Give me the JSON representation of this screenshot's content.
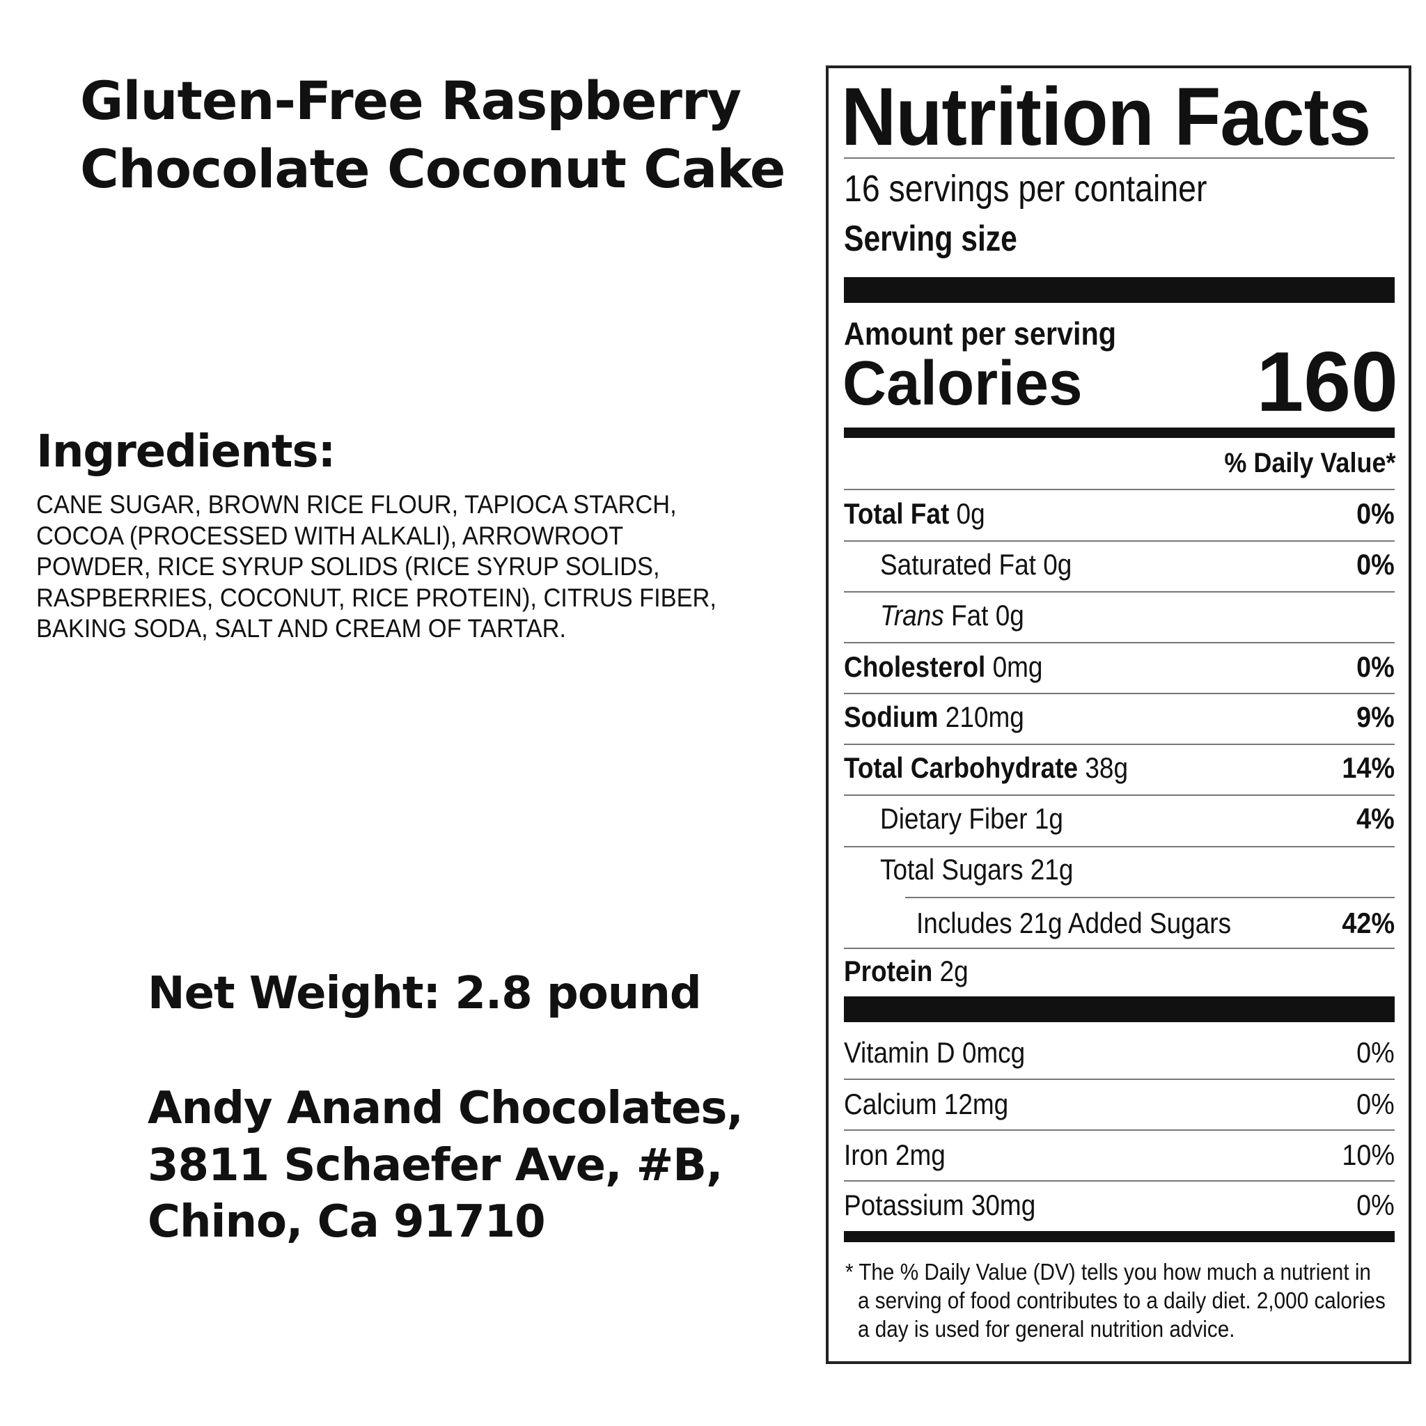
{
  "product": {
    "title_line1": "Gluten-Free Raspberry",
    "title_line2": "Chocolate Coconut Cake"
  },
  "ingredients": {
    "heading": "Ingredients:",
    "lines": [
      "CANE SUGAR, BROWN RICE FLOUR, TAPIOCA STARCH,",
      "COCOA (PROCESSED WITH ALKALI), ARROWROOT",
      "POWDER, RICE SYRUP SOLIDS (RICE SYRUP SOLIDS,",
      "RASPBERRIES, COCONUT, RICE PROTEIN), CITRUS FIBER,",
      "BAKING SODA, SALT AND CREAM OF TARTAR."
    ]
  },
  "net_weight": "Net Weight: 2.8 pound",
  "address": [
    "Andy Anand Chocolates,",
    "3811 Schaefer Ave, #B,",
    "Chino, Ca 91710"
  ],
  "nutrition": {
    "title": "Nutrition Facts",
    "servings": "16 servings per container",
    "serving_size_label": "Serving size",
    "amount_per_serving": "Amount per serving",
    "calories_label": "Calories",
    "calories": "160",
    "dv_header": "% Daily Value*",
    "rows": [
      {
        "name": "Total Fat",
        "amount": "0g",
        "dv": "0%"
      },
      {
        "name": "Saturated Fat",
        "amount": "0g",
        "dv": "0%"
      },
      {
        "name": "Trans",
        "name_suffix": "Fat",
        "amount": "0g",
        "dv": ""
      },
      {
        "name": "Cholesterol",
        "amount": "0mg",
        "dv": "0%"
      },
      {
        "name": "Sodium",
        "amount": "210mg",
        "dv": "9%"
      },
      {
        "name": "Total Carbohydrate",
        "amount": "38g",
        "dv": "14%"
      },
      {
        "name": "Dietary Fiber",
        "amount": "1g",
        "dv": "4%"
      },
      {
        "name": "Total Sugars",
        "amount": "21g",
        "dv": ""
      },
      {
        "name": "Includes 21g Added Sugars",
        "amount": "",
        "dv": "42%"
      },
      {
        "name": "Protein",
        "amount": "2g",
        "dv": ""
      }
    ],
    "vitamins": [
      {
        "name": "Vitamin D",
        "amount": "0mcg",
        "dv": "0%"
      },
      {
        "name": "Calcium",
        "amount": "12mg",
        "dv": "0%"
      },
      {
        "name": "Iron",
        "amount": "2mg",
        "dv": "10%"
      },
      {
        "name": "Potassium",
        "amount": "30mg",
        "dv": "0%"
      }
    ],
    "footnote": [
      "* The % Daily Value (DV) tells you how much a nutrient in",
      "a serving of food contributes to a daily diet. 2,000 calories",
      "a day is used for general nutrition advice."
    ]
  }
}
